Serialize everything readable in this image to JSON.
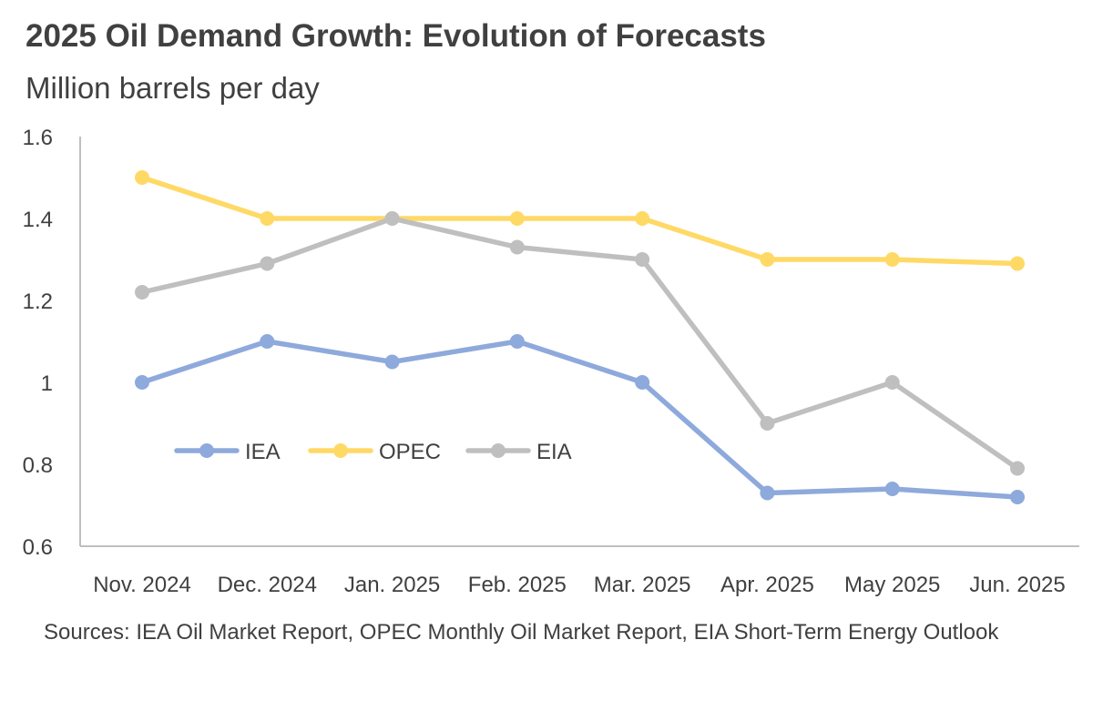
{
  "header": {
    "title": "2025 Oil Demand Growth: Evolution of Forecasts",
    "subtitle": "Million barrels per day"
  },
  "footer": {
    "source": "Sources: IEA Oil Market Report, OPEC Monthly Oil Market Report, EIA Short-Term Energy Outlook"
  },
  "colors": {
    "IEA": "#8EA9DB",
    "OPEC": "#FFD966",
    "EIA": "#BFBFBF",
    "axis": "#BFBFBF",
    "text": "#404040"
  },
  "chart_data": {
    "type": "line",
    "title": "2025 Oil Demand Growth: Evolution of Forecasts",
    "subtitle": "Million barrels per day",
    "xlabel": "",
    "ylabel": "",
    "categories": [
      "Nov. 2024",
      "Dec. 2024",
      "Jan. 2025",
      "Feb. 2025",
      "Mar. 2025",
      "Apr. 2025",
      "May 2025",
      "Jun. 2025"
    ],
    "ylim": [
      0.6,
      1.6
    ],
    "yticks": [
      "1.6",
      "1.4",
      "1.2",
      "1",
      "0.8",
      "0.6"
    ],
    "grid": false,
    "legend_position": "center-left",
    "series": [
      {
        "name": "IEA",
        "values": [
          1.0,
          1.1,
          1.05,
          1.1,
          1.0,
          0.73,
          0.74,
          0.72
        ]
      },
      {
        "name": "OPEC",
        "values": [
          1.5,
          1.4,
          1.4,
          1.4,
          1.4,
          1.3,
          1.3,
          1.29
        ]
      },
      {
        "name": "EIA",
        "values": [
          1.22,
          1.29,
          1.4,
          1.33,
          1.3,
          0.9,
          1.0,
          0.79
        ]
      }
    ]
  }
}
